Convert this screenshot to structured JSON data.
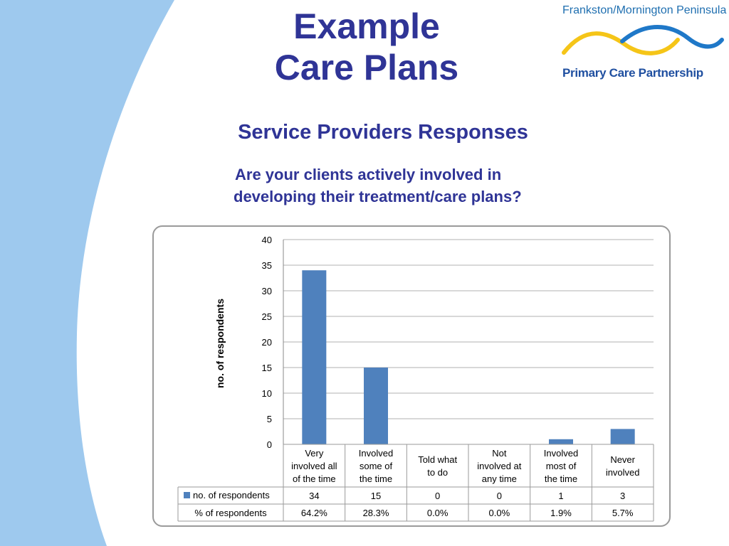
{
  "slide": {
    "title_line1": "Example",
    "title_line2": "Care Plans",
    "subtitle": "Service Providers Responses",
    "question_line1": "Are your clients actively involved in",
    "question_line2": "developing their treatment/care plans?"
  },
  "logo": {
    "top_text": "Frankston/Mornington Peninsula",
    "bottom_text": "Primary Care Partnership",
    "wave_colors": [
      "#f5c518",
      "#1f78c8"
    ]
  },
  "colors": {
    "title": "#2f3496",
    "bar": "#4f81bd",
    "background_arc": "#9ec9ee"
  },
  "chart_data": {
    "type": "bar",
    "categories": [
      [
        "Very",
        "involved all",
        "of the time"
      ],
      [
        "Involved",
        "some of",
        "the time"
      ],
      [
        "Told what",
        "to do"
      ],
      [
        "Not",
        "involved at",
        "any time"
      ],
      [
        "Involved",
        "most of",
        "the time"
      ],
      [
        "Never",
        "involved"
      ]
    ],
    "series": [
      {
        "name": "no. of respondents",
        "values": [
          34,
          15,
          0,
          0,
          1,
          3
        ],
        "labels": [
          "34",
          "15",
          "0",
          "0",
          "1",
          "3"
        ]
      }
    ],
    "table_rows": [
      {
        "label": "% of respondents",
        "values": [
          "64.2%",
          "28.3%",
          "0.0%",
          "0.0%",
          "1.9%",
          "5.7%"
        ]
      }
    ],
    "ylabel": "no. of respondents",
    "ylim": [
      0,
      40
    ],
    "yticks": [
      0,
      5,
      10,
      15,
      20,
      25,
      30,
      35,
      40
    ],
    "grid": true,
    "data_table": true
  }
}
